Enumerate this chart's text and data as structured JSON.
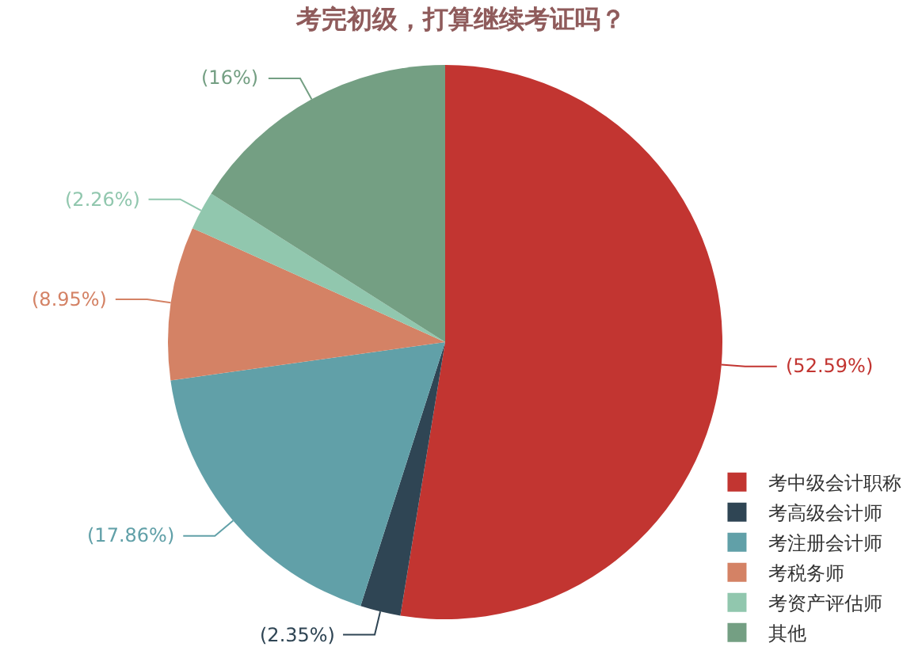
{
  "chart_data": {
    "type": "pie",
    "title": "考完初级，打算继续考证吗？",
    "categories": [
      "考中级会计职称",
      "考高级会计师",
      "考注册会计师",
      "考税务师",
      "考资产评估师",
      "其他"
    ],
    "values": [
      52.59,
      2.35,
      17.86,
      8.95,
      2.26,
      16
    ],
    "colors": [
      "#c23531",
      "#2f4554",
      "#61a0a8",
      "#d48265",
      "#91c7ae",
      "#749f83"
    ],
    "value_labels": [
      "(52.59%)",
      "(2.35%)",
      "(17.86%)",
      "(8.95%)",
      "(2.26%)",
      "(16%)"
    ],
    "legend": "bottom right"
  }
}
